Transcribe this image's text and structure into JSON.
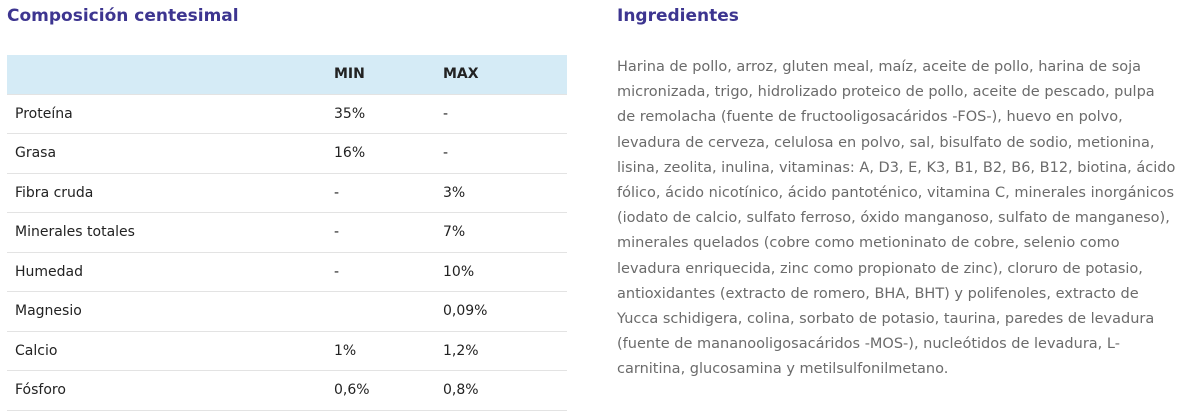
{
  "composition": {
    "title": "Composición centesimal",
    "headers": [
      "",
      "MIN",
      "MAX"
    ],
    "rows": [
      {
        "name": "Proteína",
        "min": "35%",
        "max": "-"
      },
      {
        "name": "Grasa",
        "min": "16%",
        "max": "-"
      },
      {
        "name": "Fibra cruda",
        "min": "-",
        "max": "3%"
      },
      {
        "name": "Minerales totales",
        "min": "-",
        "max": "7%"
      },
      {
        "name": "Humedad",
        "min": "-",
        "max": "10%"
      },
      {
        "name": "Magnesio",
        "min": "",
        "max": "0,09%"
      },
      {
        "name": "Calcio",
        "min": "1%",
        "max": "1,2%"
      },
      {
        "name": "Fósforo",
        "min": "0,6%",
        "max": "0,8%"
      }
    ]
  },
  "ingredients": {
    "title": "Ingredientes",
    "text": "Harina de pollo, arroz, gluten meal, maíz, aceite de pollo, harina de soja micronizada, trigo, hidrolizado proteico de pollo, aceite de pescado, pulpa de remolacha (fuente de fructooligosacáridos -FOS-), huevo en polvo, levadura de cerveza, celulosa en polvo, sal, bisulfato de sodio, metionina, lisina, zeolita, inulina, vitaminas: A, D3, E, K3, B1, B2, B6, B12, biotina, ácido fólico, ácido nicotínico, ácido pantoténico, vitamina C, minerales inorgánicos (iodato de calcio, sulfato ferroso, óxido manganoso, sulfato de manganeso), minerales quelados (cobre como metioninato de cobre, selenio como levadura enriquecida, zinc como propionato de zinc), cloruro de potasio, antioxidantes (extracto de romero, BHA, BHT) y polifenoles, extracto de Yucca schidigera, colina, sorbato de potasio, taurina, paredes de levadura (fuente de mananooligosacáridos -MOS-), nucleótidos de levadura, L-carnitina, glucosamina y metilsulfonilmetano."
  }
}
